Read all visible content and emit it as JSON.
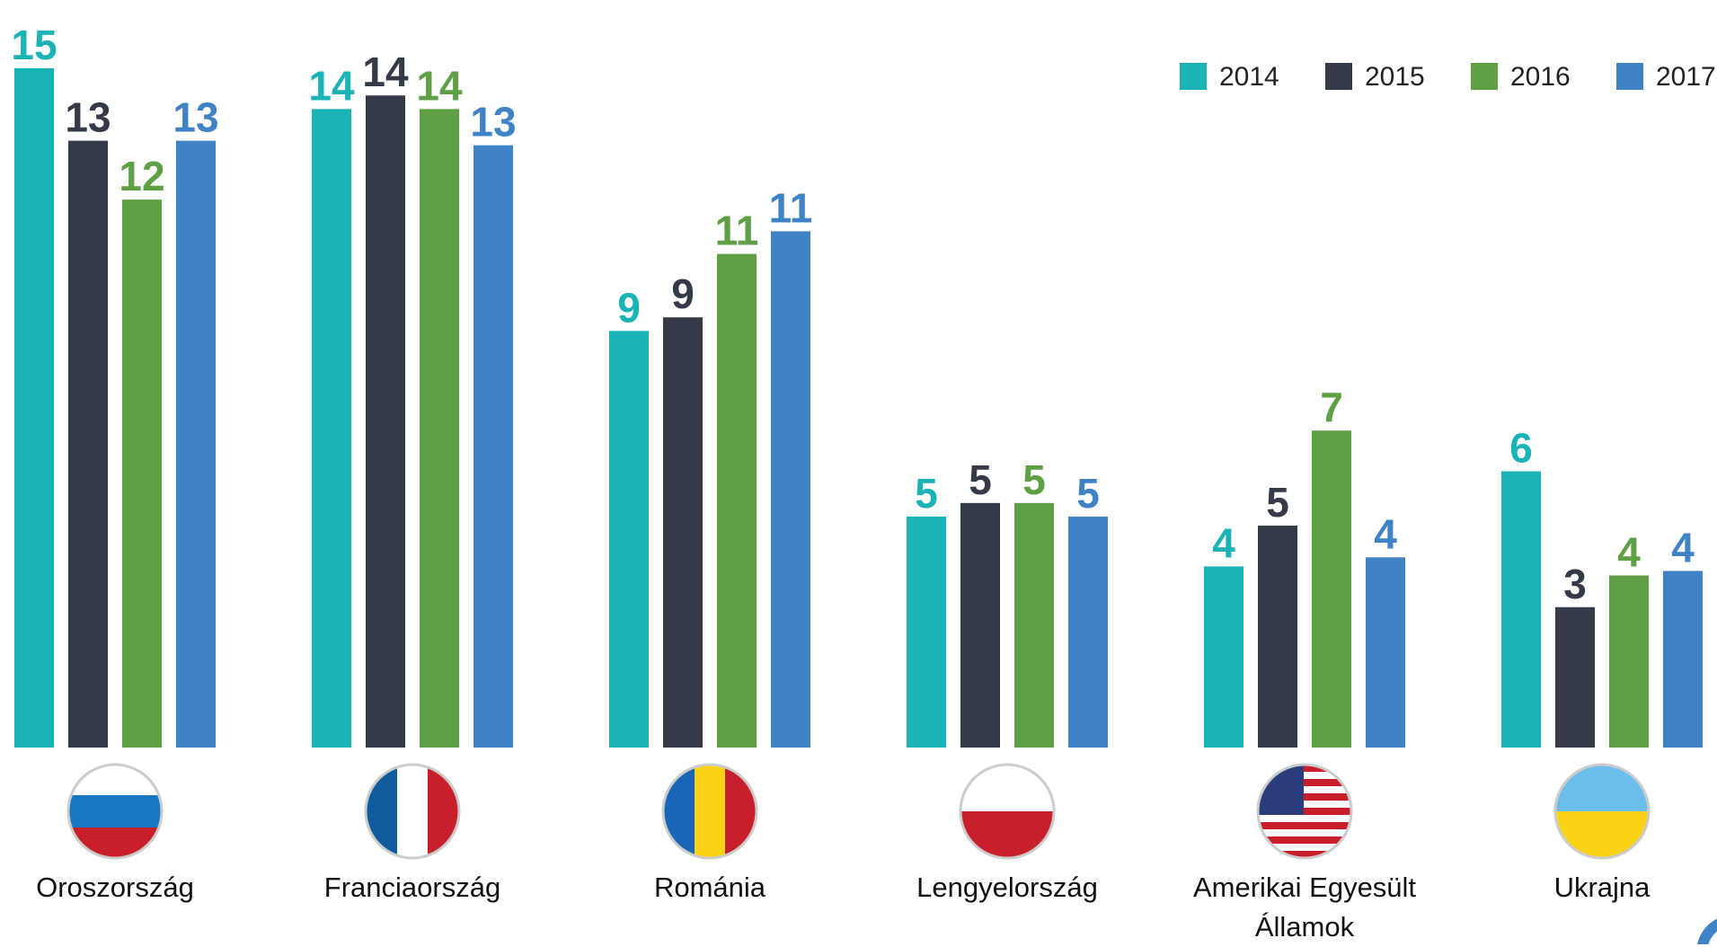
{
  "chart_data": {
    "type": "bar",
    "categories": [
      "Oroszország",
      "Franciaország",
      "Románia",
      "Lengyelország",
      "Amerikai Egyesült Államok",
      "Ukrajna"
    ],
    "series": [
      {
        "name": "2014",
        "color": "#1cb3b6",
        "values": [
          15,
          14.1,
          9.2,
          5.1,
          4.0,
          6.1
        ],
        "value_labels": [
          "15",
          "14",
          "9",
          "5",
          "4",
          "6"
        ]
      },
      {
        "name": "2015",
        "color": "#343a48",
        "values": [
          13.4,
          14.4,
          9.5,
          5.4,
          4.9,
          3.1
        ],
        "value_labels": [
          "13",
          "14",
          "9",
          "5",
          "5",
          "3"
        ]
      },
      {
        "name": "2016",
        "color": "#5fa046",
        "values": [
          12.1,
          14.1,
          10.9,
          5.4,
          7.0,
          3.8
        ],
        "value_labels": [
          "12",
          "14",
          "11",
          "5",
          "7",
          "4"
        ]
      },
      {
        "name": "2017",
        "color": "#3f83c6",
        "values": [
          13.4,
          13.3,
          11.4,
          5.1,
          4.2,
          3.9
        ],
        "value_labels": [
          "13",
          "13",
          "11",
          "5",
          "4",
          "4"
        ]
      }
    ],
    "legend": "top-right"
  }
}
